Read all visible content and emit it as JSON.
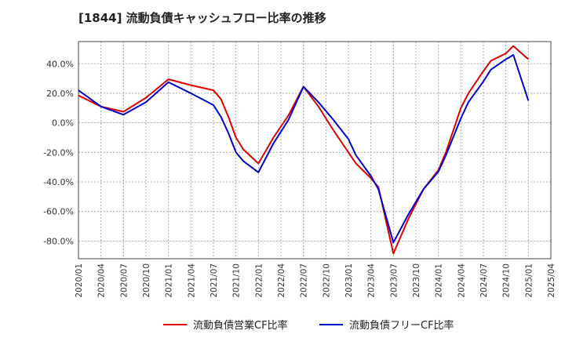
{
  "chart_data": {
    "type": "line",
    "title": "[1844]  流動負債キャッシュフロー比率の推移",
    "xlabel": "",
    "ylabel": "",
    "ylim": [
      -92,
      55
    ],
    "y_ticks": [
      40,
      20,
      0,
      -20,
      -40,
      -60,
      -80
    ],
    "y_tick_labels": [
      "40.0%",
      "20.0%",
      "0.0%",
      "-20.0%",
      "-40.0%",
      "-60.0%",
      "-80.0%"
    ],
    "x_tick_labels": [
      "2020/01",
      "2020/04",
      "2020/07",
      "2020/10",
      "2021/01",
      "2021/04",
      "2021/07",
      "2021/10",
      "2022/01",
      "2022/04",
      "2022/07",
      "2022/10",
      "2023/01",
      "2023/04",
      "2023/07",
      "2023/10",
      "2024/01",
      "2024/04",
      "2024/07",
      "2024/10",
      "2025/01",
      "2025/04"
    ],
    "x": [
      "2020/01",
      "2020/04",
      "2020/07",
      "2020/10",
      "2021/01",
      "2021/04",
      "2021/07",
      "2021/08",
      "2021/09",
      "2021/10",
      "2021/11",
      "2022/01",
      "2022/03",
      "2022/05",
      "2022/07",
      "2022/09",
      "2022/11",
      "2023/01",
      "2023/02",
      "2023/04",
      "2023/05",
      "2023/07",
      "2023/09",
      "2023/11",
      "2024/01",
      "2024/02",
      "2024/04",
      "2024/05",
      "2024/07",
      "2024/08",
      "2024/10",
      "2024/11",
      "2025/01"
    ],
    "series": [
      {
        "name": "流動負債営業CF比率",
        "color": "#dd0000",
        "values": [
          18.5,
          11,
          7.5,
          17,
          29.5,
          25.5,
          22,
          16,
          4,
          -10,
          -18,
          -27.5,
          -10,
          5,
          24.5,
          11,
          -5,
          -20,
          -27.5,
          -37.5,
          -43.5,
          -88.5,
          -65,
          -45,
          -32,
          -20,
          10,
          20,
          35,
          42,
          47,
          52,
          43
        ]
      },
      {
        "name": "流動負債フリーCF比率",
        "color": "#0000cc",
        "values": [
          22,
          11,
          5.5,
          14,
          27.5,
          20,
          12,
          4,
          -7,
          -20,
          -26,
          -33.5,
          -14,
          2,
          24.5,
          14,
          2,
          -11,
          -22,
          -36,
          -45,
          -81,
          -62,
          -45,
          -33,
          -22,
          3,
          14,
          28,
          36,
          43,
          46,
          15
        ]
      }
    ],
    "legend_position": "bottom-center",
    "grid": true
  }
}
